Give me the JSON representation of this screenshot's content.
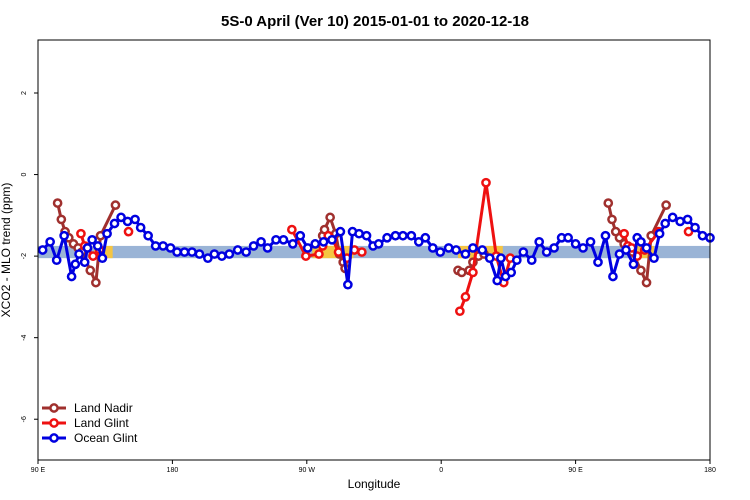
{
  "chart_data": {
    "type": "line",
    "title": "5S-0 April (Ver 10)   2015-01-01 to 2020-12-18",
    "xlabel": "Longitude",
    "ylabel": "XCO2 - MLO trend (ppm)",
    "xlim": [
      -90,
      270
    ],
    "ylim": [
      -7,
      3.3
    ],
    "x_ticks": [
      {
        "value": -90,
        "label": "90 E"
      },
      {
        "value": -18,
        "label": "180"
      },
      {
        "value": 54,
        "label": "90 W"
      },
      {
        "value": 126,
        "label": "0"
      },
      {
        "value": 198,
        "label": "90 E"
      },
      {
        "value": 270,
        "label": "180"
      }
    ],
    "y_ticks": [
      {
        "value": 2,
        "label": "2"
      },
      {
        "value": 0,
        "label": "0"
      },
      {
        "value": -2,
        "label": "-2"
      },
      {
        "value": -4,
        "label": "-4"
      },
      {
        "value": -6,
        "label": "-6"
      }
    ],
    "bands": [
      {
        "color": "#9ab4d6",
        "y_range": [
          -2.05,
          -1.75
        ],
        "x_range": [
          -90,
          270
        ]
      },
      {
        "color": "#f5c542",
        "y_range": [
          -2.05,
          -1.75
        ],
        "x_range": [
          -60,
          -50
        ]
      },
      {
        "color": "#f5c542",
        "y_range": [
          -2.05,
          -1.75
        ],
        "x_range": [
          57,
          79
        ]
      },
      {
        "color": "#f5c542",
        "y_range": [
          -2.05,
          -1.75
        ],
        "x_range": [
          135,
          159
        ]
      },
      {
        "color": "#f5c542",
        "y_range": [
          -2.05,
          -1.75
        ],
        "x_range": [
          229,
          240
        ]
      }
    ],
    "legend": {
      "position": "bottom-left"
    },
    "series": [
      {
        "name": "Land Nadir",
        "color": "#a0302e",
        "x": [
          -79.5,
          -77.5,
          -75.5,
          -73.5,
          -71,
          -68.5,
          -66.5,
          -62,
          -59,
          -56.5,
          -48.5,
          62.5,
          63.5,
          66.5,
          69.5,
          71.5,
          73.5,
          74.5,
          135,
          137,
          141,
          143,
          146,
          149,
          215.5,
          217.5,
          219.5,
          221.5,
          224,
          226.5,
          228.5,
          233,
          236,
          238.5,
          246.5
        ],
        "y": [
          -0.7,
          -1.1,
          -1.4,
          -1.55,
          -1.7,
          -1.8,
          -1.9,
          -2.35,
          -2.65,
          -1.5,
          -0.75,
          -1.5,
          -1.35,
          -1.05,
          -1.45,
          -1.95,
          -2.15,
          -2.3,
          -2.35,
          -2.4,
          -2.35,
          -2.15,
          -2.0,
          -1.95,
          -0.7,
          -1.1,
          -1.4,
          -1.55,
          -1.7,
          -1.8,
          -1.9,
          -2.35,
          -2.65,
          -1.5,
          -0.75
        ],
        "markers": true
      },
      {
        "name": "Land Glint",
        "color": "#ee1111",
        "x": [
          -67,
          -65,
          -63.5,
          -60.5,
          -57,
          -41.5,
          46,
          53.5,
          60.5,
          62.5,
          65.5,
          68,
          71,
          75.5,
          79.5,
          83.5,
          136,
          139,
          143,
          150,
          155.5,
          159.5,
          163,
          224,
          226,
          228,
          231,
          235,
          242.5,
          258.5
        ],
        "y": [
          -1.45,
          -1.75,
          -1.8,
          -2.0,
          -1.85,
          -1.4,
          -1.35,
          -2.0,
          -1.95,
          -1.75,
          -1.5,
          -1.6,
          -1.9,
          -2.05,
          -1.85,
          -1.9,
          -3.35,
          -3.0,
          -2.4,
          -0.2,
          -2.0,
          -2.65,
          -2.05,
          -1.45,
          -1.75,
          -1.8,
          -2.0,
          -1.85,
          -1.4,
          -1.4
        ],
        "markers": true
      },
      {
        "name": "Ocean Glint",
        "color": "#0000e0",
        "x": [
          -87.5,
          -83.5,
          -80,
          -76,
          -72,
          -70,
          -68,
          -65,
          -63.5,
          -61,
          -58,
          -55.5,
          -53,
          -49,
          -45.5,
          -42,
          -38,
          -35,
          -31,
          -27,
          -23,
          -19,
          -15.5,
          -11.5,
          -7.5,
          -3.5,
          1,
          4.5,
          8.5,
          12.5,
          17,
          21.5,
          25.5,
          29.5,
          33,
          37.5,
          41.5,
          46.5,
          50.5,
          54.5,
          58.5,
          63,
          67.5,
          72,
          76,
          78.5,
          82,
          86,
          89.5,
          92.5,
          97,
          101.5,
          105.5,
          110,
          114,
          117.5,
          121.5,
          125.5,
          130,
          134,
          139,
          143,
          148,
          152,
          156,
          158,
          160.5,
          163.5,
          166.5,
          170,
          174.5,
          178.5,
          182.5,
          186.5,
          190.5,
          194,
          198,
          202,
          206,
          210,
          214,
          218,
          221.5,
          225,
          229,
          231,
          233,
          236,
          240,
          243,
          246,
          250,
          254,
          258,
          262,
          266,
          270
        ],
        "y": [
          -1.85,
          -1.65,
          -2.1,
          -1.5,
          -2.5,
          -2.2,
          -1.95,
          -2.15,
          -1.8,
          -1.6,
          -1.75,
          -2.05,
          -1.45,
          -1.2,
          -1.05,
          -1.15,
          -1.1,
          -1.3,
          -1.5,
          -1.75,
          -1.75,
          -1.8,
          -1.9,
          -1.9,
          -1.9,
          -1.95,
          -2.05,
          -1.95,
          -2.0,
          -1.95,
          -1.85,
          -1.9,
          -1.75,
          -1.65,
          -1.8,
          -1.6,
          -1.6,
          -1.7,
          -1.5,
          -1.8,
          -1.7,
          -1.65,
          -1.6,
          -1.4,
          -2.7,
          -1.4,
          -1.45,
          -1.5,
          -1.75,
          -1.7,
          -1.55,
          -1.5,
          -1.5,
          -1.5,
          -1.65,
          -1.55,
          -1.8,
          -1.9,
          -1.8,
          -1.85,
          -1.95,
          -1.8,
          -1.85,
          -2.05,
          -2.6,
          -2.05,
          -2.5,
          -2.4,
          -2.1,
          -1.9,
          -2.1,
          -1.65,
          -1.9,
          -1.8,
          -1.55,
          -1.55,
          -1.7,
          -1.8,
          -1.65,
          -2.15,
          -1.5,
          -2.5,
          -1.95,
          -1.85,
          -2.2,
          -1.55,
          -1.65,
          -1.8,
          -2.05,
          -1.45,
          -1.2,
          -1.05,
          -1.15,
          -1.1,
          -1.3,
          -1.5,
          -1.55
        ],
        "markers": true
      }
    ]
  }
}
